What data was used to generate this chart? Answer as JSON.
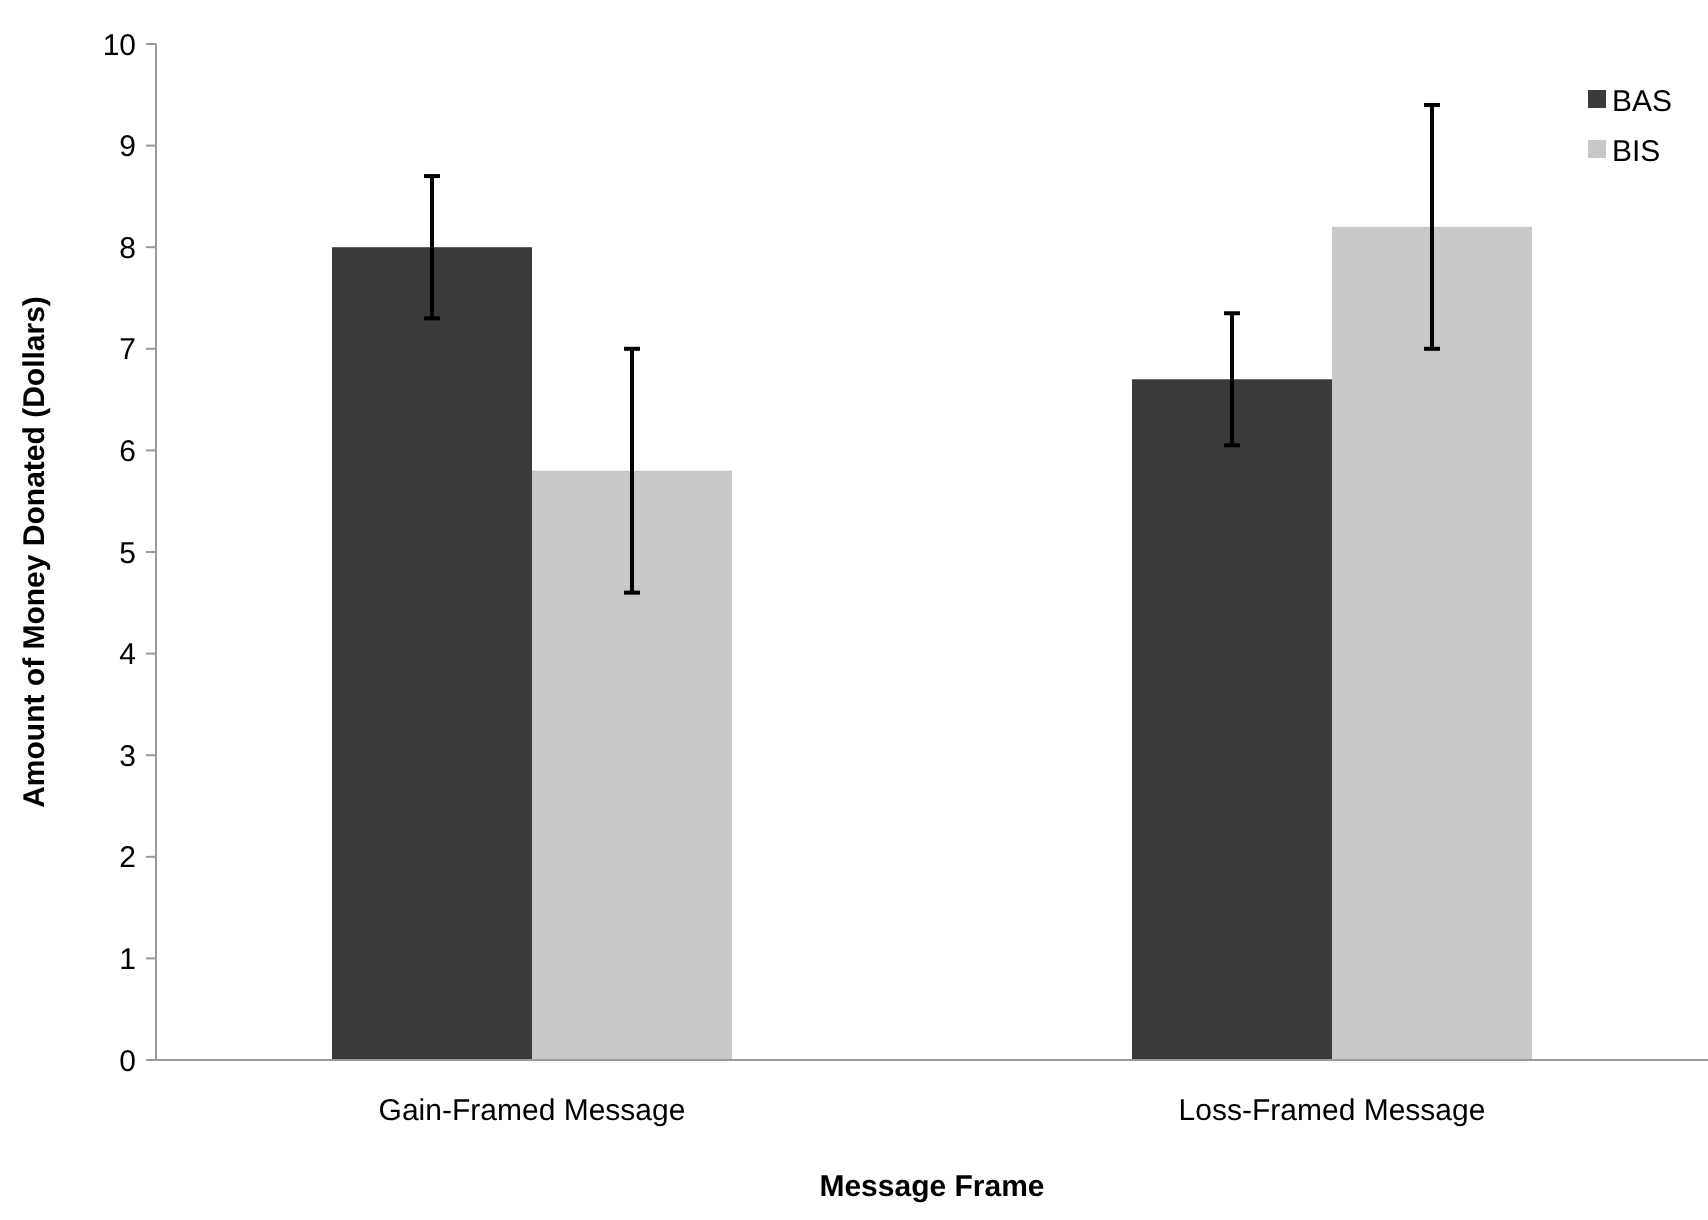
{
  "chart_data": {
    "type": "bar",
    "xlabel": "Message Frame",
    "ylabel": "Amount of Money Donated (Dollars)",
    "categories": [
      "Gain-Framed Message",
      "Loss-Framed Message"
    ],
    "series": [
      {
        "name": "BAS",
        "color": "#3a3a3a",
        "values": [
          8.0,
          6.7
        ],
        "errors": [
          0.7,
          0.65
        ]
      },
      {
        "name": "BIS",
        "color": "#c8c8c8",
        "values": [
          5.8,
          8.2
        ],
        "errors": [
          1.2,
          1.2
        ]
      }
    ],
    "ylim": [
      0,
      10
    ],
    "yticks": [
      0,
      1,
      2,
      3,
      4,
      5,
      6,
      7,
      8,
      9,
      10
    ],
    "legend": "top right"
  }
}
